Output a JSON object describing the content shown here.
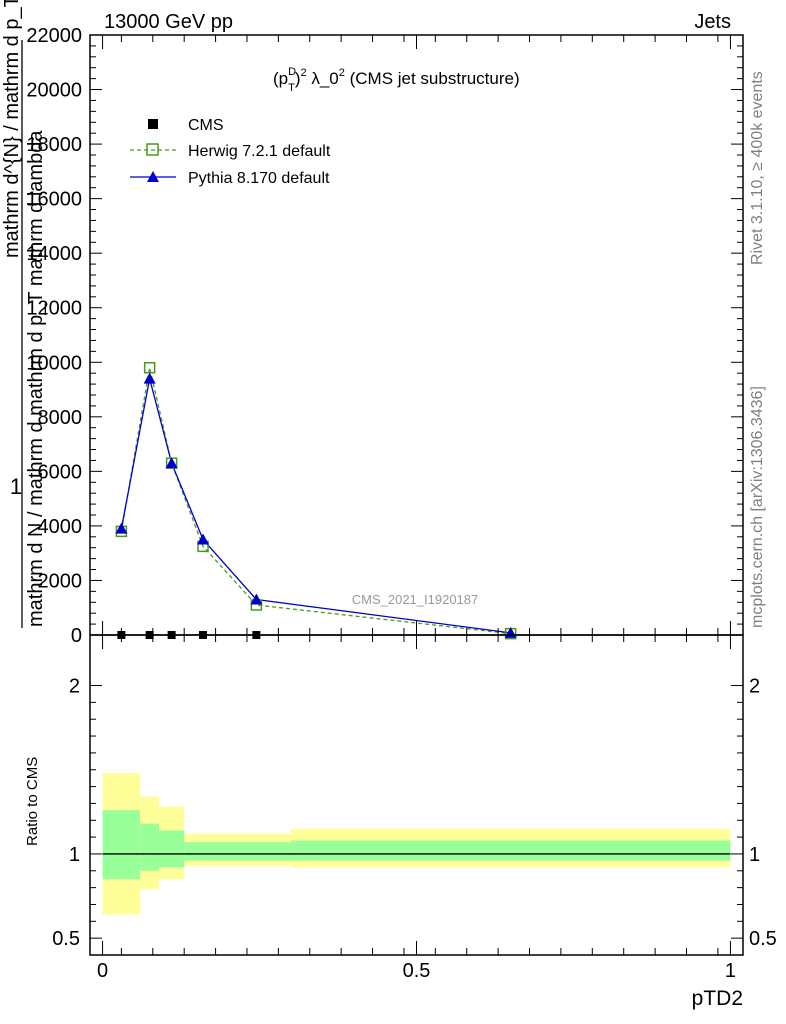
{
  "header": {
    "left": "13000 GeV pp",
    "right": "Jets"
  },
  "side_text": {
    "rivet": "Rivet 3.1.10, ≥ 400k events",
    "mcplots": "mcplots.cern.ch [arXiv:1306.3436]"
  },
  "watermark": "CMS_2021_I1920187",
  "chart_data": [
    {
      "type": "line",
      "title": "(p_T^D)^2 λ_0^2 (CMS jet substructure)",
      "title_parts": {
        "a": "(p",
        "sup1": "D",
        "sub1": "T",
        "b": ")",
        "sup2": "2",
        "c": " λ_0",
        "sup3": "2",
        "d": " (CMS jet substructure)"
      },
      "ylabel_top": "1",
      "ylabel_bottom": "mathrm d N / mathrm d mathrm d p_T mathrm d lambda",
      "ylabel_overlap": "mathrm d^{N} / mathrm d p_T mathrm d lambda",
      "ylim": [
        0,
        22000
      ],
      "y_ticks": [
        0,
        2000,
        4000,
        6000,
        8000,
        10000,
        12000,
        14000,
        16000,
        18000,
        20000,
        22000
      ],
      "y_tick_labels": [
        "0",
        "2000",
        "4000",
        "6000",
        "8000",
        "10000",
        "12000",
        "14000",
        "16000",
        "18000",
        "20000",
        "22000"
      ],
      "xlim": [
        -0.02,
        1.02
      ],
      "legend": "top-left",
      "series": [
        {
          "name": "CMS",
          "marker": "square",
          "color": "#000000",
          "x": [
            0.03,
            0.075,
            0.11,
            0.16,
            0.245
          ],
          "y": [
            0,
            0,
            0,
            0,
            0
          ]
        },
        {
          "name": "Herwig 7.2.1 default",
          "marker": "open-square",
          "color": "#4a9a1a",
          "dash": true,
          "x": [
            0.03,
            0.075,
            0.11,
            0.16,
            0.245,
            0.65
          ],
          "y": [
            3800,
            9800,
            6300,
            3250,
            1100,
            50
          ]
        },
        {
          "name": "Pythia 8.170 default",
          "marker": "triangle",
          "color": "#0000cc",
          "dash": false,
          "x": [
            0.03,
            0.075,
            0.11,
            0.16,
            0.245,
            0.65
          ],
          "y": [
            3900,
            9400,
            6300,
            3500,
            1300,
            80
          ]
        }
      ]
    },
    {
      "type": "area",
      "ylabel": "Ratio to CMS",
      "xlabel": "pTD2",
      "ylim": [
        0.4,
        2.3
      ],
      "y_ticks": [
        0.5,
        1,
        2
      ],
      "y_tick_labels": [
        "0.5",
        "1",
        "2"
      ],
      "x_ticks": [
        0,
        0.5,
        1
      ],
      "x_tick_labels": [
        "0",
        "0.5",
        "1"
      ],
      "band_edges": [
        0,
        0.06,
        0.09,
        0.13,
        0.3,
        1.0
      ],
      "band_yellow_low": [
        0.64,
        0.79,
        0.85,
        0.93,
        0.92
      ],
      "band_yellow_high": [
        1.48,
        1.34,
        1.28,
        1.12,
        1.15
      ],
      "band_green_low": [
        0.85,
        0.9,
        0.92,
        0.96,
        0.96
      ],
      "band_green_high": [
        1.26,
        1.18,
        1.14,
        1.07,
        1.08
      ],
      "colors": {
        "yellow": "#ffff99",
        "green": "#99ff99"
      }
    }
  ]
}
